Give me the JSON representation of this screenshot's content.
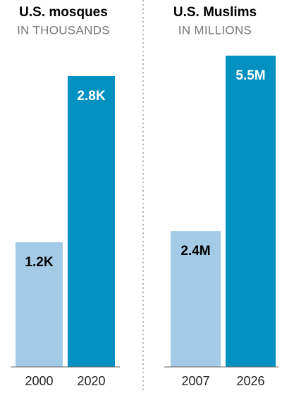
{
  "chart_data": [
    {
      "type": "bar",
      "title": "U.S. mosques",
      "subtitle": "IN THOUSANDS",
      "categories": [
        "2000",
        "2020"
      ],
      "values": [
        1.2,
        2.8
      ],
      "value_labels": [
        "1.2K",
        "2.8K"
      ],
      "colors": [
        "#a3cbe5",
        "#0391c1"
      ],
      "ylim": [
        0,
        2.8
      ]
    },
    {
      "type": "bar",
      "title": "U.S. Muslims",
      "subtitle": "IN MILLIONS",
      "categories": [
        "2007",
        "2026"
      ],
      "values": [
        2.4,
        5.5
      ],
      "value_labels": [
        "2.4M",
        "5.5M"
      ],
      "colors": [
        "#a3cbe5",
        "#0391c1"
      ],
      "ylim": [
        0,
        5.5
      ]
    }
  ]
}
